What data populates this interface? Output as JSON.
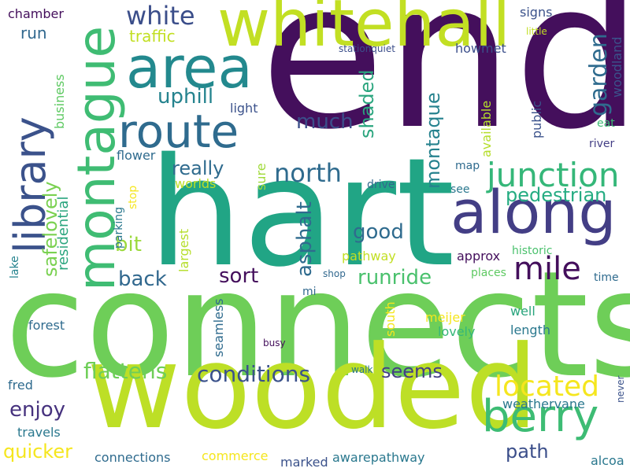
{
  "palette": {
    "dark_purple": "#440f5c",
    "indigo": "#3b4e8a",
    "slate_blue": "#2f6a8d",
    "teal": "#21918c",
    "sea_green": "#2aa57e",
    "green": "#4cc26c",
    "lime": "#82d34a",
    "yellow_green": "#bddf26",
    "yellow": "#f5e61e"
  },
  "words": [
    {
      "text": "end",
      "color": "#440f5c"
    },
    {
      "text": "connects",
      "color": "#6ece58"
    },
    {
      "text": "hart",
      "color": "#21a585"
    },
    {
      "text": "wooded",
      "color": "#bddf26"
    },
    {
      "text": "whitehall",
      "color": "#c2df23"
    },
    {
      "text": "along",
      "color": "#433e85"
    },
    {
      "text": "montague",
      "color": "#3fbc73"
    },
    {
      "text": "area",
      "color": "#23898e"
    },
    {
      "text": "route",
      "color": "#2f6b8e"
    },
    {
      "text": "library",
      "color": "#3b528b"
    },
    {
      "text": "berry",
      "color": "#3dbc74"
    },
    {
      "text": "mile",
      "color": "#440f5c"
    },
    {
      "text": "junction",
      "color": "#35b779"
    },
    {
      "text": "located",
      "color": "#f5e61e"
    },
    {
      "text": "north",
      "color": "#2f6b8e"
    },
    {
      "text": "white",
      "color": "#3b4e8a"
    },
    {
      "text": "garden",
      "color": "#2f6b8e"
    },
    {
      "text": "flattens",
      "color": "#6ece58"
    },
    {
      "text": "conditions",
      "color": "#3b528b"
    },
    {
      "text": "runride",
      "color": "#4ac16d"
    },
    {
      "text": "asphalt",
      "color": "#2f6b8e"
    },
    {
      "text": "montaque",
      "color": "#26828e"
    },
    {
      "text": "shaded",
      "color": "#2aa57e"
    },
    {
      "text": "safelovely",
      "color": "#7ad151"
    },
    {
      "text": "pedestrian",
      "color": "#25ac82"
    },
    {
      "text": "really",
      "color": "#2f6b8e"
    },
    {
      "text": "uphill",
      "color": "#25838e"
    },
    {
      "text": "much",
      "color": "#3b4e8a"
    },
    {
      "text": "sort",
      "color": "#440f5c"
    },
    {
      "text": "back",
      "color": "#31688e"
    },
    {
      "text": "good",
      "color": "#2f6b8e"
    },
    {
      "text": "bit",
      "color": "#9bd93c"
    },
    {
      "text": "enjoy",
      "color": "#46327e"
    },
    {
      "text": "quicker",
      "color": "#f5e61e"
    },
    {
      "text": "seems",
      "color": "#433e85"
    },
    {
      "text": "path",
      "color": "#3b4e8a"
    },
    {
      "text": "traffic",
      "color": "#c2df23"
    },
    {
      "text": "run",
      "color": "#31688e"
    },
    {
      "text": "residential",
      "color": "#2aa57e"
    },
    {
      "text": "business",
      "color": "#5ec962"
    },
    {
      "text": "chamber",
      "color": "#440f5c"
    },
    {
      "text": "signs",
      "color": "#3b528b"
    },
    {
      "text": "howmet",
      "color": "#3b4e8a"
    },
    {
      "text": "stationquiet",
      "color": "#3b4e8a"
    },
    {
      "text": "little",
      "color": "#c2df23"
    },
    {
      "text": "woodland",
      "color": "#3b528b"
    },
    {
      "text": "available",
      "color": "#b5de2b"
    },
    {
      "text": "public",
      "color": "#3b528b"
    },
    {
      "text": "eat",
      "color": "#3dbc74"
    },
    {
      "text": "river",
      "color": "#433e85"
    },
    {
      "text": "light",
      "color": "#3b528b"
    },
    {
      "text": "flower",
      "color": "#2f6b8e"
    },
    {
      "text": "sure",
      "color": "#a0da39"
    },
    {
      "text": "worlds",
      "color": "#bddf26"
    },
    {
      "text": "drive",
      "color": "#31688e"
    },
    {
      "text": "map",
      "color": "#2f6b8e"
    },
    {
      "text": "see",
      "color": "#2a788e"
    },
    {
      "text": "stop",
      "color": "#f5e61e"
    },
    {
      "text": "parking",
      "color": "#2a788e"
    },
    {
      "text": "largest",
      "color": "#b5de2b"
    },
    {
      "text": "pathway",
      "color": "#c2df23"
    },
    {
      "text": "approx",
      "color": "#440f5c"
    },
    {
      "text": "historic",
      "color": "#4ac16d"
    },
    {
      "text": "shop",
      "color": "#31688e"
    },
    {
      "text": "places",
      "color": "#5ec962"
    },
    {
      "text": "lake",
      "color": "#25838e"
    },
    {
      "text": "time",
      "color": "#2f6b8e"
    },
    {
      "text": "mi",
      "color": "#31688e"
    },
    {
      "text": "forest",
      "color": "#2f6b8e"
    },
    {
      "text": "seamless",
      "color": "#2f6b8e"
    },
    {
      "text": "south",
      "color": "#f5e61e"
    },
    {
      "text": "meijer",
      "color": "#f5e61e"
    },
    {
      "text": "well",
      "color": "#2aa57e"
    },
    {
      "text": "lovely",
      "color": "#35b779"
    },
    {
      "text": "length",
      "color": "#2a788e"
    },
    {
      "text": "busy",
      "color": "#440f5c"
    },
    {
      "text": "walk",
      "color": "#2a788e"
    },
    {
      "text": "fred",
      "color": "#2f6b8e"
    },
    {
      "text": "weathervane",
      "color": "#2a788e"
    },
    {
      "text": "never",
      "color": "#3b528b"
    },
    {
      "text": "travels",
      "color": "#2a788e"
    },
    {
      "text": "connections",
      "color": "#2f6b8e"
    },
    {
      "text": "commerce",
      "color": "#f5e61e"
    },
    {
      "text": "marked",
      "color": "#3b528b"
    },
    {
      "text": "awarepathway",
      "color": "#2a788e"
    },
    {
      "text": "alcoa",
      "color": "#2a788e"
    }
  ]
}
